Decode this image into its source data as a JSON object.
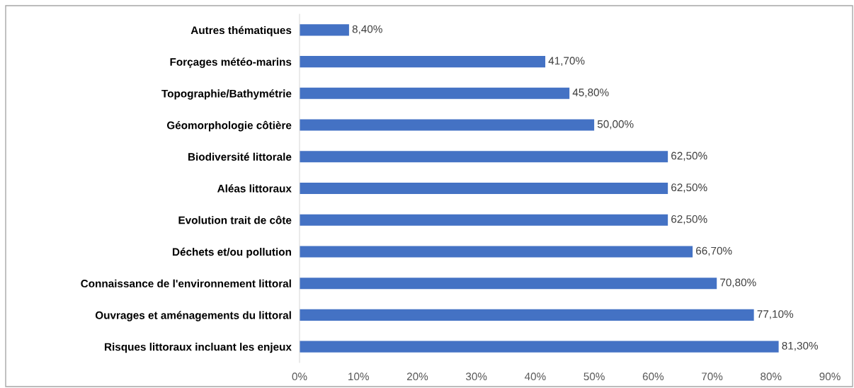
{
  "chart_data": {
    "type": "bar",
    "orientation": "horizontal",
    "categories": [
      "Autres thématiques",
      "Forçages météo-marins",
      "Topographie/Bathymétrie",
      "Géomorphologie côtière",
      "Biodiversité littorale",
      "Aléas littoraux",
      "Evolution trait de côte",
      "Déchets et/ou pollution",
      "Connaissance de l'environnement littoral",
      "Ouvrages et aménagements du littoral",
      "Risques littoraux incluant les enjeux"
    ],
    "values": [
      8.4,
      41.7,
      45.8,
      50.0,
      62.5,
      62.5,
      62.5,
      66.7,
      70.8,
      77.1,
      81.3
    ],
    "value_labels": [
      "8,40%",
      "41,70%",
      "45,80%",
      "50,00%",
      "62,50%",
      "62,50%",
      "62,50%",
      "66,70%",
      "70,80%",
      "77,10%",
      "81,30%"
    ],
    "color": "#4472c4",
    "xlim": [
      0,
      90
    ],
    "xticks": [
      {
        "value": 0,
        "label": "0%"
      },
      {
        "value": 10,
        "label": "10%"
      },
      {
        "value": 20,
        "label": "20%"
      },
      {
        "value": 30,
        "label": "30%"
      },
      {
        "value": 40,
        "label": "40%"
      },
      {
        "value": 50,
        "label": "50%"
      },
      {
        "value": 60,
        "label": "60%"
      },
      {
        "value": 70,
        "label": "70%"
      },
      {
        "value": 80,
        "label": "80%"
      },
      {
        "value": 90,
        "label": "90%"
      }
    ],
    "grid": false,
    "legend": false
  }
}
